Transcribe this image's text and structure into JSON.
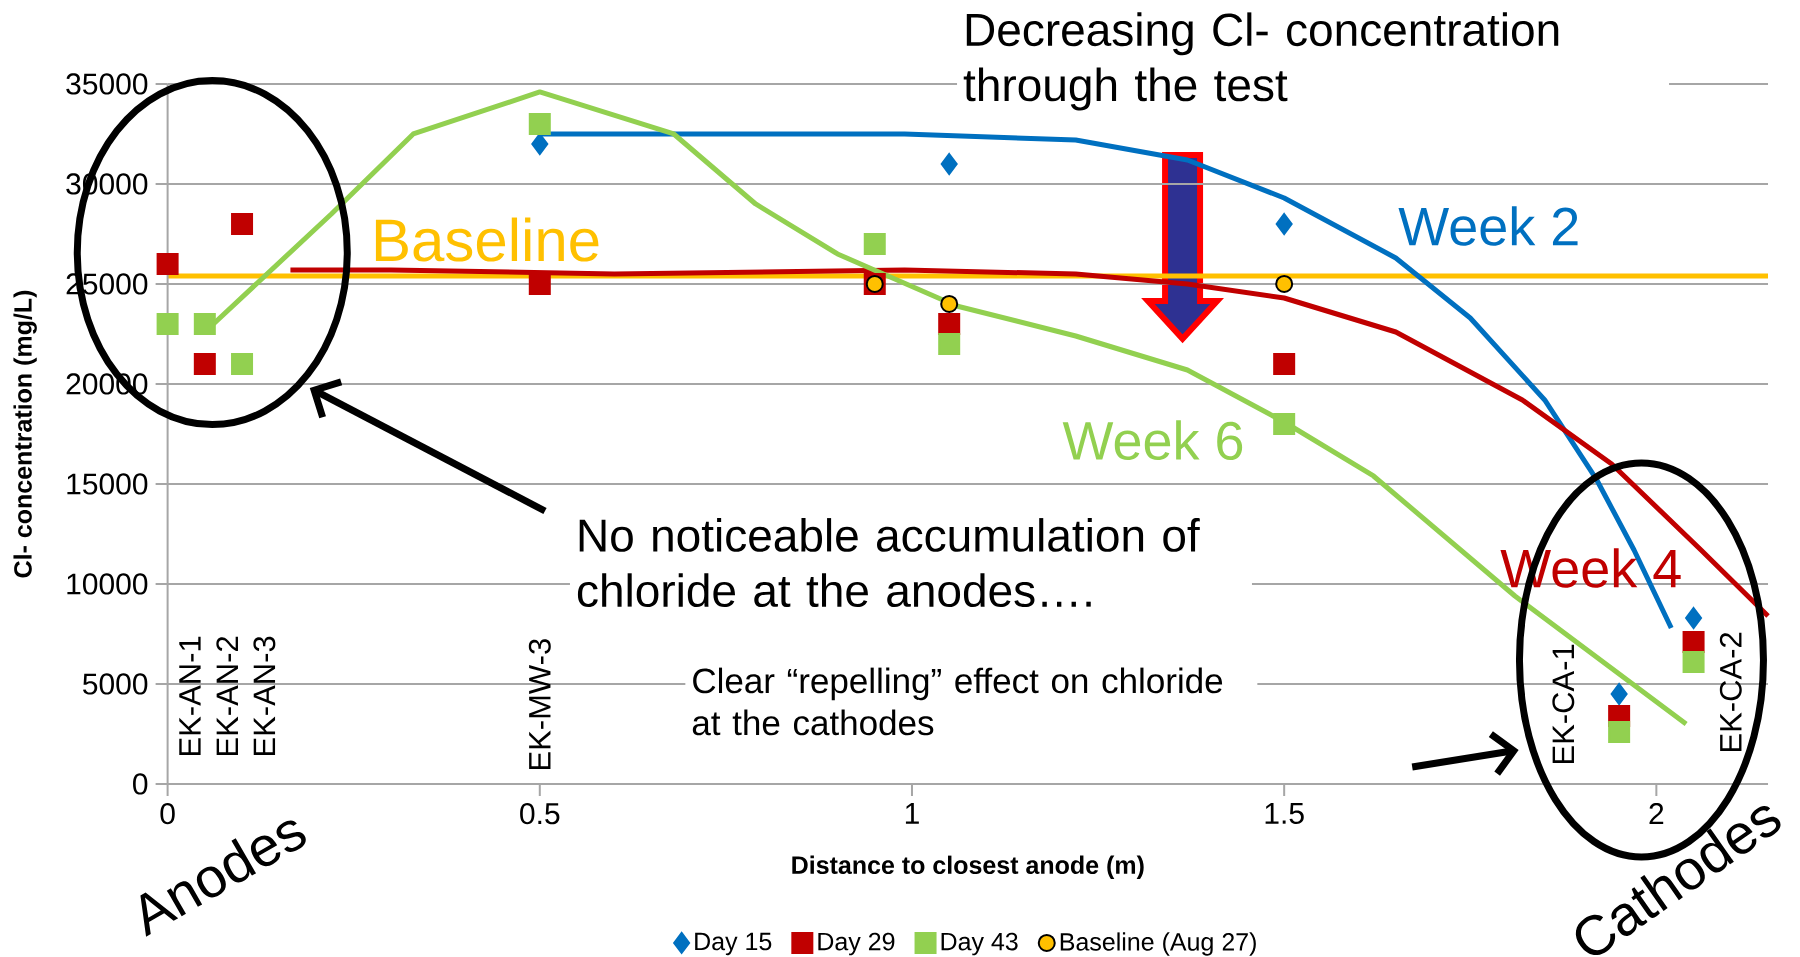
{
  "chart_data": {
    "type": "scatter",
    "xlabel": "Distance to closest anode (m)",
    "ylabel": "Cl- concentration (mg/L)",
    "xlim": [
      0,
      2.15
    ],
    "xticks": [
      0,
      0.5,
      1,
      1.5,
      2
    ],
    "ylim": [
      0,
      35000
    ],
    "yticks": [
      0,
      5000,
      10000,
      15000,
      20000,
      25000,
      30000,
      35000
    ],
    "grid": "y",
    "legend": "bottom",
    "series": [
      {
        "name": "Day 15",
        "color": "#0070c0",
        "marker": "diamond",
        "x": [
          0.5,
          1.05,
          1.5,
          1.95,
          2.05
        ],
        "values": [
          32000,
          31000,
          28000,
          4500,
          8300
        ]
      },
      {
        "name": "Day 29",
        "color": "#c00000",
        "marker": "square",
        "x": [
          0,
          0.05,
          0.1,
          0.5,
          0.95,
          1.05,
          1.5,
          1.95,
          2.05
        ],
        "values": [
          26000,
          21000,
          28000,
          25000,
          25000,
          23000,
          21000,
          3400,
          7100
        ]
      },
      {
        "name": "Day 43",
        "color": "#92d050",
        "marker": "square",
        "x": [
          0,
          0.05,
          0.1,
          0.5,
          0.95,
          1.05,
          1.5,
          1.95,
          2.05
        ],
        "values": [
          23000,
          23000,
          21000,
          33000,
          27000,
          22000,
          18000,
          2600,
          6100
        ]
      },
      {
        "name": "Baseline (Aug 27)",
        "color": "#ffc000",
        "marker": "circle",
        "x": [
          0.95,
          1.05,
          1.5
        ],
        "values": [
          25000,
          24000,
          25000
        ]
      },
      {
        "type": "line",
        "name": "Week 2",
        "color": "#0070c0",
        "marker": "none",
        "x": [
          0.5,
          0.7,
          0.99,
          1.22,
          1.37,
          1.5,
          1.65,
          1.75,
          1.85,
          1.92,
          1.97,
          2.02
        ],
        "values": [
          32500,
          32500,
          32500,
          32200,
          31200,
          29300,
          26300,
          23300,
          19200,
          15200,
          11700,
          7800
        ]
      },
      {
        "type": "line",
        "name": "Week 4",
        "color": "#c00000",
        "marker": "none",
        "x": [
          0.165,
          0.3,
          0.6,
          0.99,
          1.22,
          1.37,
          1.5,
          1.65,
          1.82,
          1.94,
          2.06,
          2.15
        ],
        "values": [
          25700,
          25700,
          25500,
          25700,
          25500,
          25000,
          24300,
          22600,
          19200,
          16000,
          11700,
          8400
        ]
      },
      {
        "type": "line",
        "name": "Week 6",
        "color": "#92d050",
        "marker": "none",
        "x": [
          0.05,
          0.22,
          0.33,
          0.5,
          0.68,
          0.79,
          0.9,
          1.06,
          1.22,
          1.37,
          1.5,
          1.62,
          1.81,
          2.04
        ],
        "values": [
          22600,
          28500,
          32500,
          34600,
          32500,
          29000,
          26500,
          23900,
          22400,
          20700,
          18100,
          15400,
          9400,
          3000
        ]
      }
    ],
    "ref_lines": [
      {
        "axis": "y",
        "value": 25400,
        "label": "Baseline",
        "color": "#ffc000"
      }
    ],
    "annotations": [
      "Decreasing Cl- concentration through the test",
      "No noticeable accumulation of chloride at the anodes….",
      "Clear “repelling” effect on chloride at the cathodes",
      "Anodes",
      "Cathodes",
      "EK-AN-1",
      "EK-AN-2",
      "EK-AN-3",
      "EK-MW-3",
      "EK-CA-1",
      "EK-CA-2"
    ]
  }
}
